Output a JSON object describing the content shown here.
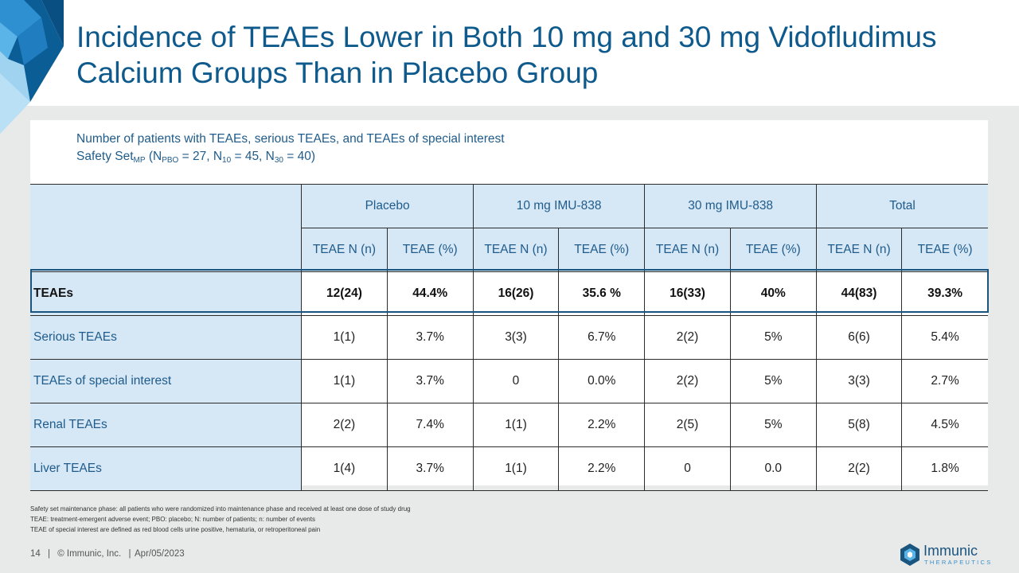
{
  "title": "Incidence of TEAEs Lower in Both 10 mg and 30 mg Vidofludimus Calcium Groups Than in Placebo Group",
  "subtitle_line1": "Number of patients with TEAEs, serious TEAEs, and TEAEs of special interest",
  "safety_set": {
    "prefix": "Safety Set",
    "prefix_sub": "MP",
    "open": " (N",
    "pbo_sub": "PBO",
    "pbo_val": " = 27, N",
    "n10_sub": "10",
    "n10_val": " = 45, N",
    "n30_sub": "30",
    "n30_val": " = 40)"
  },
  "table": {
    "groups": [
      "Placebo",
      "10 mg IMU-838",
      "30 mg IMU-838",
      "Total"
    ],
    "subheaders": [
      "TEAE N (n)",
      "TEAE (%)",
      "TEAE N (n)",
      "TEAE (%)",
      "TEAE N (n)",
      "TEAE (%)",
      "TEAE N (n)",
      "TEAE (%)"
    ],
    "rows": [
      {
        "label": "TEAEs",
        "values": [
          "12(24)",
          "44.4%",
          "16(26)",
          "35.6 %",
          "16(33)",
          "40%",
          "44(83)",
          "39.3%"
        ]
      },
      {
        "label": "Serious TEAEs",
        "values": [
          "1(1)",
          "3.7%",
          "3(3)",
          "6.7%",
          "2(2)",
          "5%",
          "6(6)",
          "5.4%"
        ]
      },
      {
        "label": "TEAEs of special interest",
        "values": [
          "1(1)",
          "3.7%",
          "0",
          "0.0%",
          "2(2)",
          "5%",
          "3(3)",
          "2.7%"
        ]
      },
      {
        "label": "Renal TEAEs",
        "values": [
          "2(2)",
          "7.4%",
          "1(1)",
          "2.2%",
          "2(5)",
          "5%",
          "5(8)",
          "4.5%"
        ]
      },
      {
        "label": "Liver TEAEs",
        "values": [
          "1(4)",
          "3.7%",
          "1(1)",
          "2.2%",
          "0",
          "0.0",
          "2(2)",
          "1.8%"
        ]
      }
    ]
  },
  "notes": [
    "Safety set maintenance phase: all patients who were randomized into maintenance phase and received at least one dose of study drug",
    "TEAE: treatment-emergent adverse event; PBO: placebo; N: number of patients; n: number of events",
    "TEAE of special interest are defined as red blood cells urine positive, hematuria, or retroperitoneal pain"
  ],
  "footer": {
    "page": "14",
    "sep1": "|",
    "copyright": "© Immunic, Inc.",
    "sep2": "|",
    "date": "Apr/05/2023"
  },
  "logo": {
    "name": "Immunic",
    "tagline": "THERAPEUTICS"
  },
  "colors": {
    "title": "#0e5a8c",
    "header_fill": "#d6e7f6",
    "band": "#e8e9e9"
  }
}
